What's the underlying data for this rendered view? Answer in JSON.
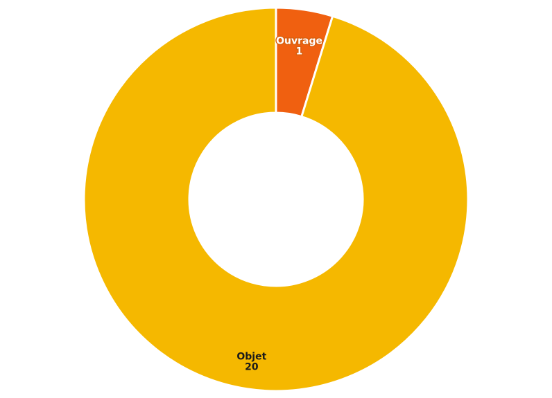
{
  "chart_data": {
    "type": "pie",
    "donut": true,
    "title": "",
    "slices": [
      {
        "label": "Ouvrage",
        "value": 1,
        "color": "#f06010"
      },
      {
        "label": "Objet",
        "value": 20,
        "color": "#f5b800"
      }
    ],
    "legend": "none",
    "start_angle_deg": 0,
    "direction": "clockwise"
  }
}
